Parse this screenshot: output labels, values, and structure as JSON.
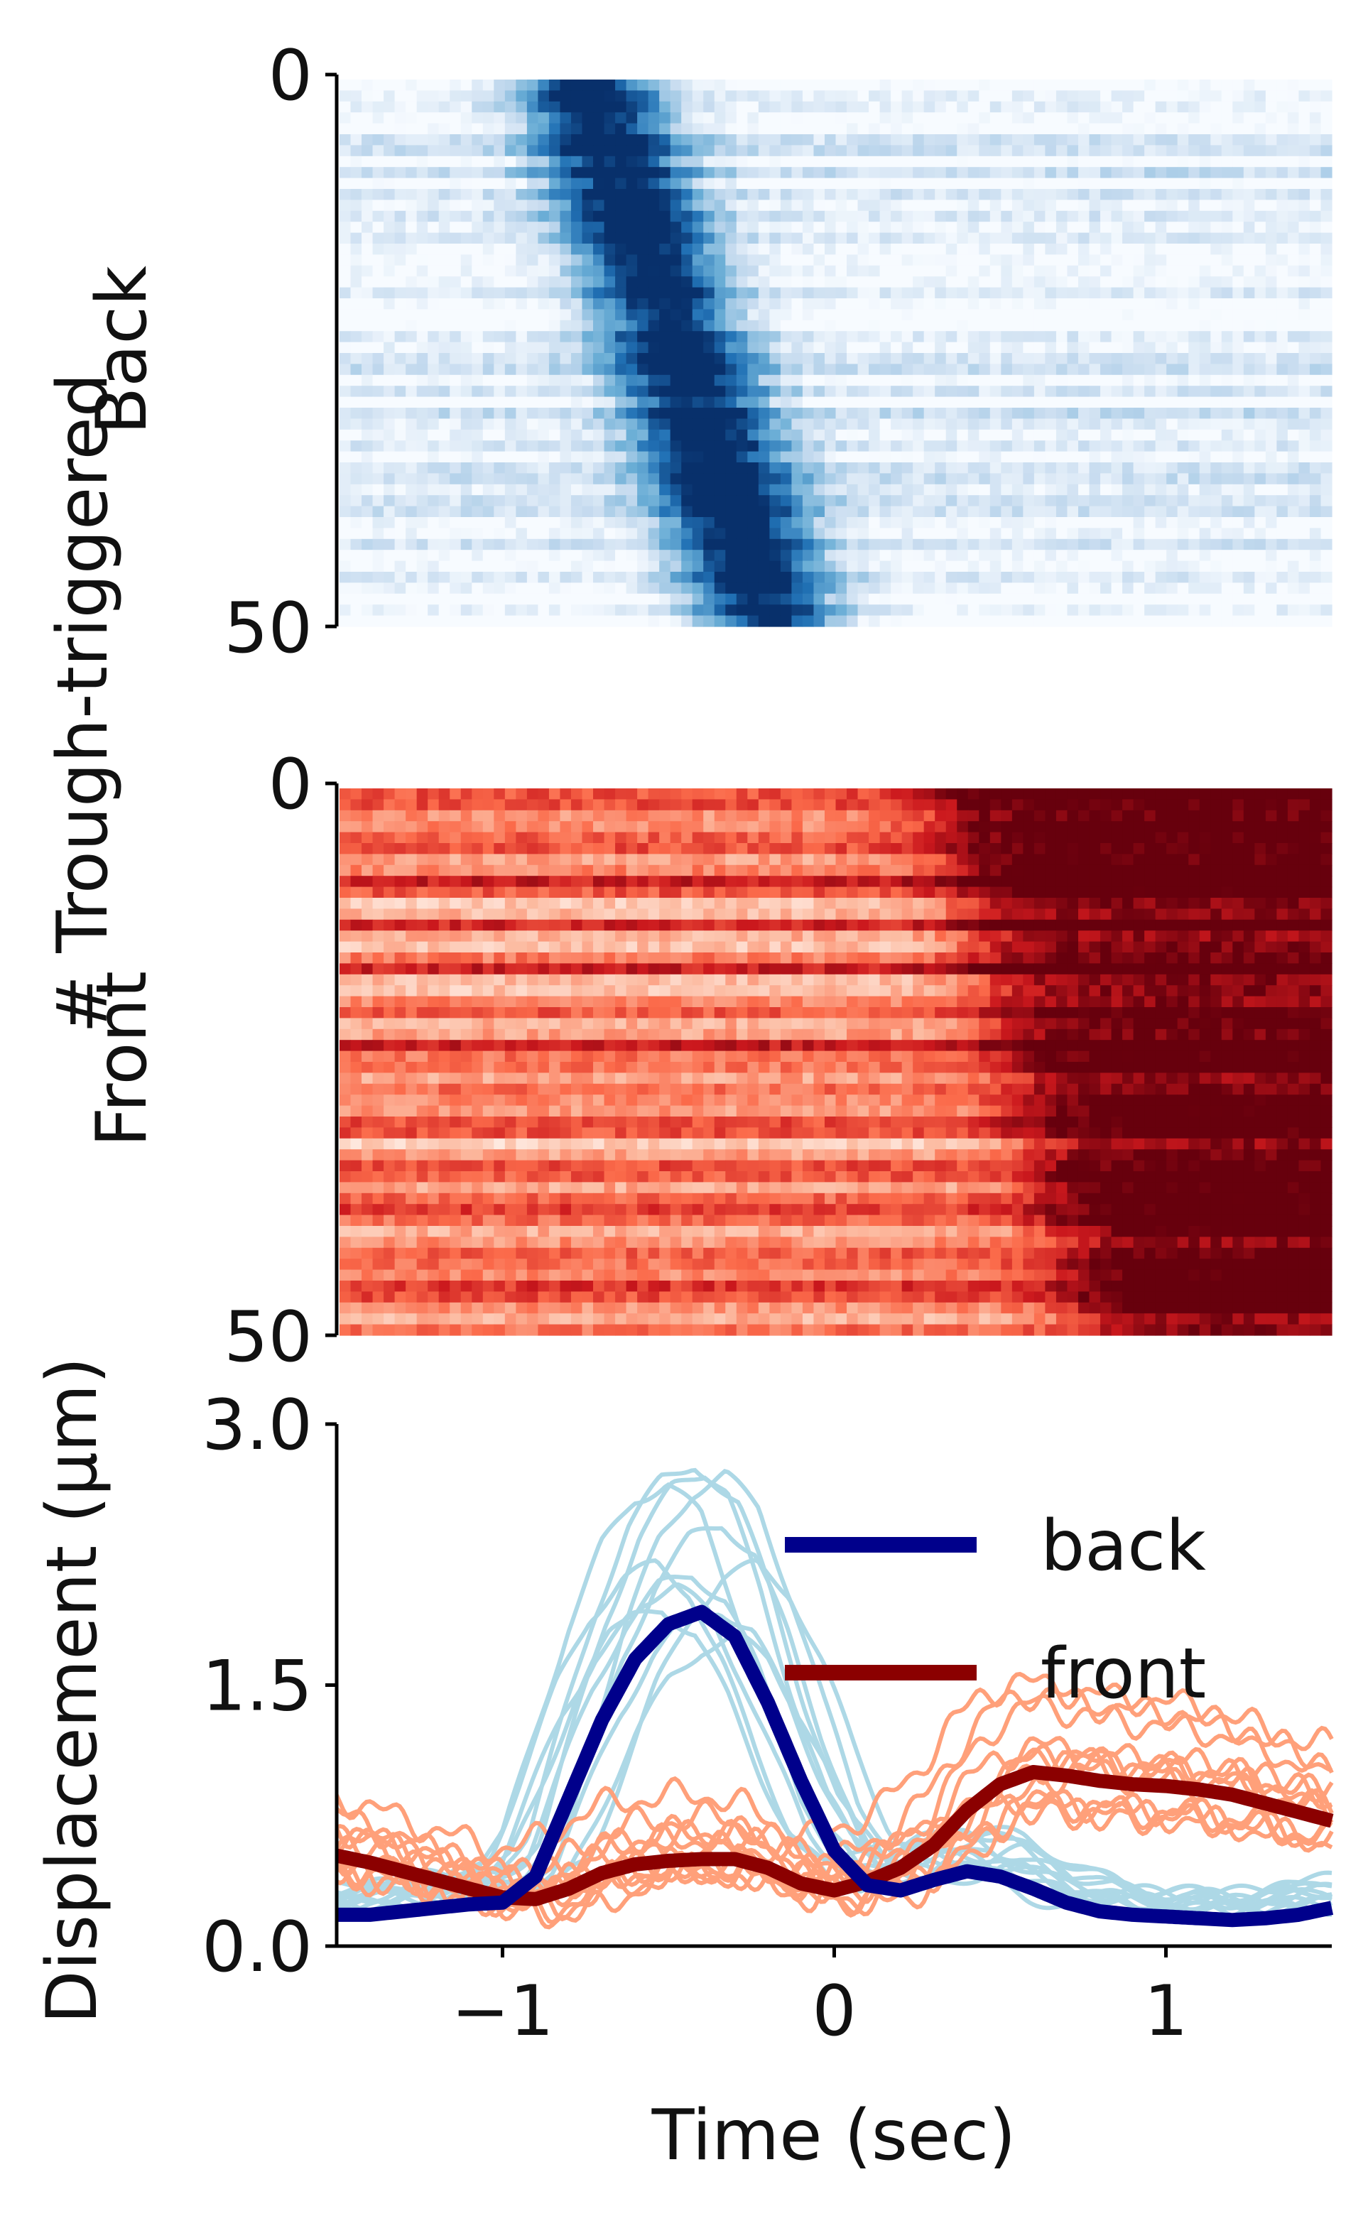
{
  "figure": {
    "shared_ylabel": "# Trough-triggered",
    "back_label": "Back",
    "front_label": "Front"
  },
  "chart_data": [
    {
      "type": "heatmap",
      "panel": "back",
      "colormap": "Blues",
      "xlim": [
        -1.5,
        1.5
      ],
      "ylim": [
        0,
        50
      ],
      "yticks": [
        "0",
        "50"
      ],
      "ylabel": "Back",
      "rows": 50,
      "description_of_values": "per-row displacement heat strip; dark band sweeps from ~-0.8 s (top) to ~-0.2 s (bottom)"
    },
    {
      "type": "heatmap",
      "panel": "front",
      "colormap": "Reds",
      "xlim": [
        -1.5,
        1.5
      ],
      "ylim": [
        0,
        50
      ],
      "yticks": [
        "0",
        "50"
      ],
      "ylabel": "Front",
      "rows": 50
    },
    {
      "type": "line",
      "panel": "displacement",
      "xlabel": "Time (sec)",
      "ylabel": "Displacement (μm)",
      "xlim": [
        -1.5,
        1.5
      ],
      "ylim": [
        0,
        3.0
      ],
      "xticks": [
        "−1",
        "0",
        "1"
      ],
      "xtick_values": [
        -1,
        0,
        1
      ],
      "yticks": [
        "0.0",
        "1.5",
        "3.0"
      ],
      "ytick_values": [
        0,
        1.5,
        3.0
      ],
      "legend_position": "top-right",
      "x": [
        -1.5,
        -1.4,
        -1.3,
        -1.2,
        -1.1,
        -1.0,
        -0.9,
        -0.8,
        -0.7,
        -0.6,
        -0.5,
        -0.4,
        -0.3,
        -0.2,
        -0.1,
        0.0,
        0.1,
        0.2,
        0.3,
        0.4,
        0.5,
        0.6,
        0.7,
        0.8,
        0.9,
        1.0,
        1.1,
        1.2,
        1.3,
        1.4,
        1.5
      ],
      "series": [
        {
          "name": "back",
          "color": "#00008b",
          "values": [
            0.18,
            0.18,
            0.2,
            0.22,
            0.24,
            0.25,
            0.4,
            0.85,
            1.3,
            1.65,
            1.85,
            1.92,
            1.78,
            1.4,
            0.95,
            0.55,
            0.35,
            0.32,
            0.38,
            0.43,
            0.4,
            0.33,
            0.25,
            0.2,
            0.18,
            0.17,
            0.16,
            0.15,
            0.16,
            0.18,
            0.22
          ]
        },
        {
          "name": "front",
          "color": "#8b0000",
          "values": [
            0.52,
            0.48,
            0.43,
            0.38,
            0.33,
            0.28,
            0.27,
            0.33,
            0.42,
            0.47,
            0.49,
            0.5,
            0.5,
            0.45,
            0.36,
            0.32,
            0.37,
            0.45,
            0.58,
            0.78,
            0.93,
            1.0,
            0.98,
            0.95,
            0.93,
            0.92,
            0.9,
            0.87,
            0.82,
            0.77,
            0.72
          ]
        }
      ],
      "individual_trace_colors": {
        "back": "#add8e6",
        "front": "#ffa07a"
      }
    }
  ]
}
